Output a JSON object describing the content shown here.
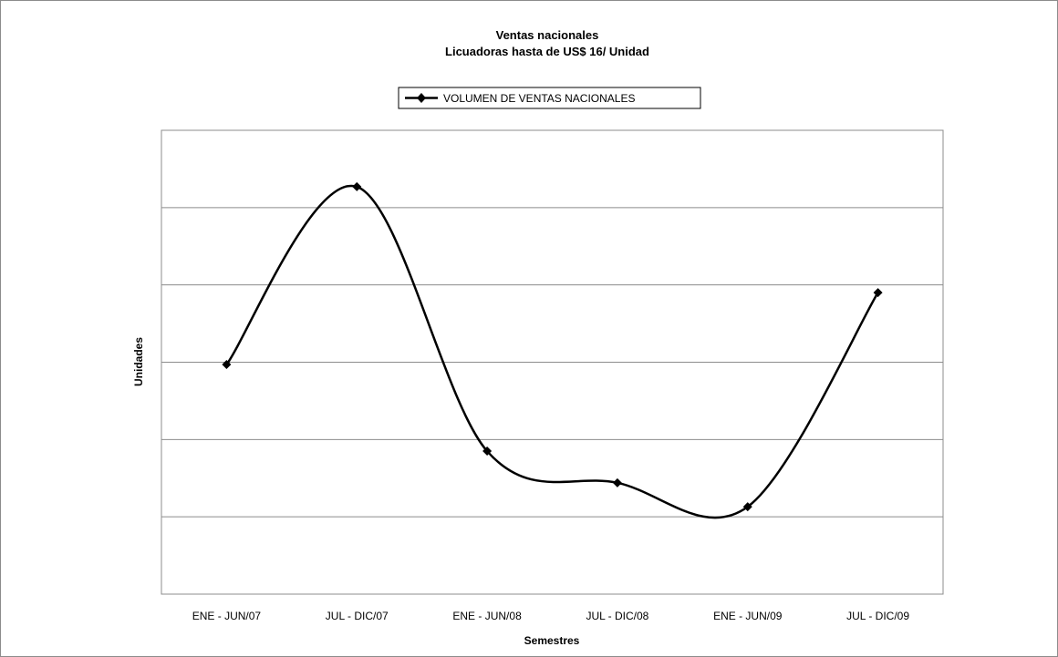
{
  "chart_data": {
    "type": "line",
    "title": "Ventas nacionales",
    "subtitle": "Licuadoras hasta de US$ 16/ Unidad",
    "xlabel": "Semestres",
    "ylabel": "Unidades",
    "categories": [
      "ENE - JUN/07",
      "JUL - DIC/07",
      "ENE - JUN/08",
      "JUL - DIC/08",
      "ENE - JUN/09",
      "JUL - DIC/09"
    ],
    "series": [
      {
        "name": "VOLUMEN DE VENTAS NACIONALES",
        "values": [
          2.97,
          5.27,
          1.85,
          1.44,
          1.13,
          3.9
        ]
      }
    ],
    "ylim": [
      0,
      6
    ],
    "y_ticks_labeled": false,
    "grid": true,
    "smooth": true,
    "legend": "top-center",
    "colors": {
      "line": "#000000",
      "grid": "#8c8c8c",
      "frame": "#8c8c8c"
    }
  }
}
